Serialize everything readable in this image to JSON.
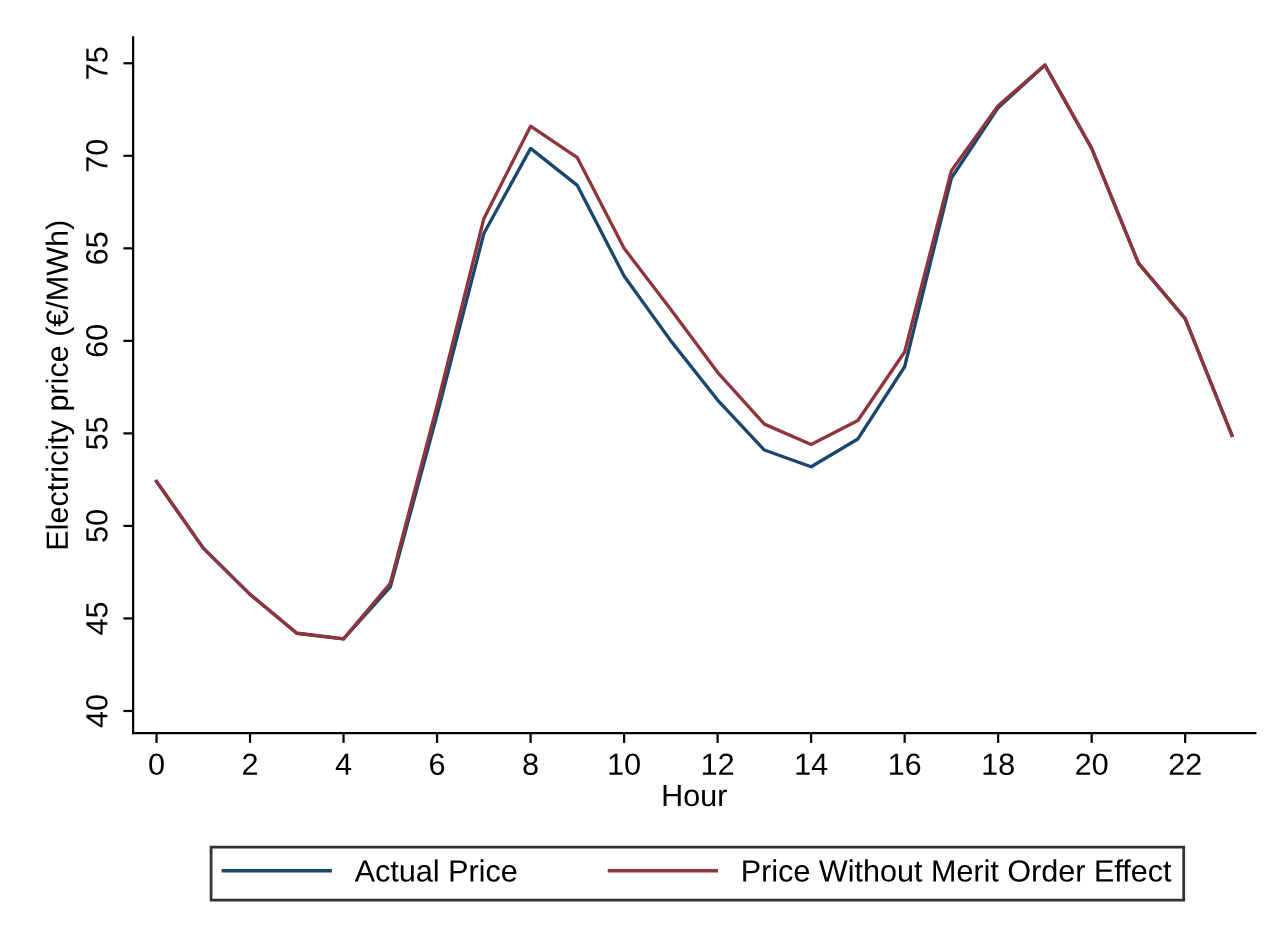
{
  "chart_data": {
    "type": "line",
    "xlabel": "Hour",
    "ylabel": "Electricity price (€/MWh)",
    "x": [
      0,
      1,
      2,
      3,
      4,
      5,
      6,
      7,
      8,
      9,
      10,
      11,
      12,
      13,
      14,
      15,
      16,
      17,
      18,
      19,
      20,
      21,
      22,
      23
    ],
    "series": [
      {
        "name": "Actual Price",
        "color": "#1a476f",
        "values": [
          52.4,
          48.8,
          46.3,
          44.2,
          43.9,
          46.7,
          56.0,
          65.8,
          70.4,
          68.4,
          63.5,
          60.0,
          56.8,
          54.1,
          53.2,
          54.7,
          58.6,
          68.8,
          72.6,
          74.9,
          70.4,
          64.2,
          61.2,
          54.9
        ]
      },
      {
        "name": "Price Without Merit Order Effect",
        "color": "#90353b",
        "values": [
          52.4,
          48.8,
          46.3,
          44.2,
          43.9,
          46.9,
          56.5,
          66.6,
          71.6,
          69.9,
          65.0,
          61.7,
          58.3,
          55.5,
          54.4,
          55.7,
          59.4,
          69.2,
          72.7,
          74.9,
          70.4,
          64.2,
          61.2,
          54.9
        ]
      }
    ],
    "xlim": [
      -0.5,
      23.5
    ],
    "ylim": [
      38.8,
      76.4
    ],
    "xticks": [
      0,
      2,
      4,
      6,
      8,
      10,
      12,
      14,
      16,
      18,
      20,
      22
    ],
    "yticks": [
      40,
      45,
      50,
      55,
      60,
      65,
      70,
      75
    ],
    "grid": false,
    "legend": "bottom",
    "marker": "none",
    "line_style": "solid"
  }
}
